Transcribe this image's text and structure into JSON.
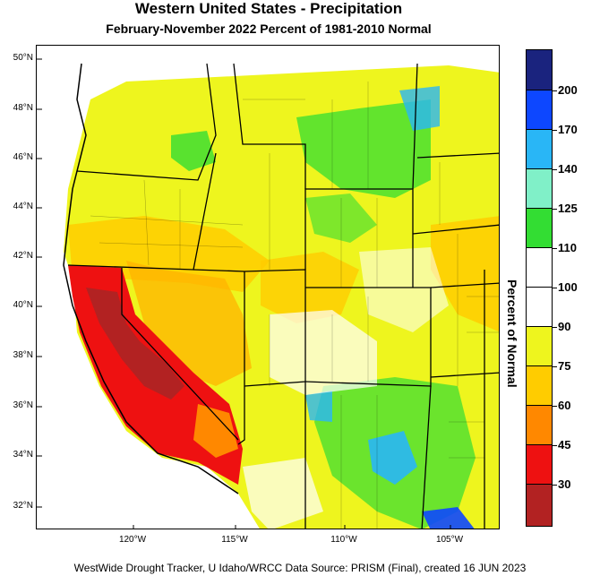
{
  "title": "Western United States - Precipitation",
  "subtitle": "February-November 2022  Percent of 1981-2010 Normal",
  "footer": "WestWide Drought Tracker, U Idaho/WRCC Data Source: PRISM (Final), created 16 JUN 2023",
  "latitude_labels": [
    "50°N",
    "48°N",
    "46°N",
    "44°N",
    "42°N",
    "40°N",
    "38°N",
    "36°N",
    "34°N",
    "32°N"
  ],
  "longitude_labels": [
    "120°W",
    "115°W",
    "110°W",
    "105°W"
  ],
  "legend": {
    "title": "Percent of Normal",
    "bins": [
      {
        "label": "200",
        "color": "#1a237e"
      },
      {
        "label": "170",
        "color": "#0d47ff"
      },
      {
        "label": "140",
        "color": "#29b6f6"
      },
      {
        "label": "125",
        "color": "#80f0c8"
      },
      {
        "label": "110",
        "color": "#33dd33"
      },
      {
        "label": "100",
        "color": "#ffffff"
      },
      {
        "label": "90",
        "color": "#ffffff"
      },
      {
        "label": "75",
        "color": "#eef51e"
      },
      {
        "label": "60",
        "color": "#ffcc00"
      },
      {
        "label": "45",
        "color": "#ff8800"
      },
      {
        "label": "30",
        "color": "#ee1111"
      },
      {
        "label": "",
        "color": "#b22222"
      }
    ]
  }
}
